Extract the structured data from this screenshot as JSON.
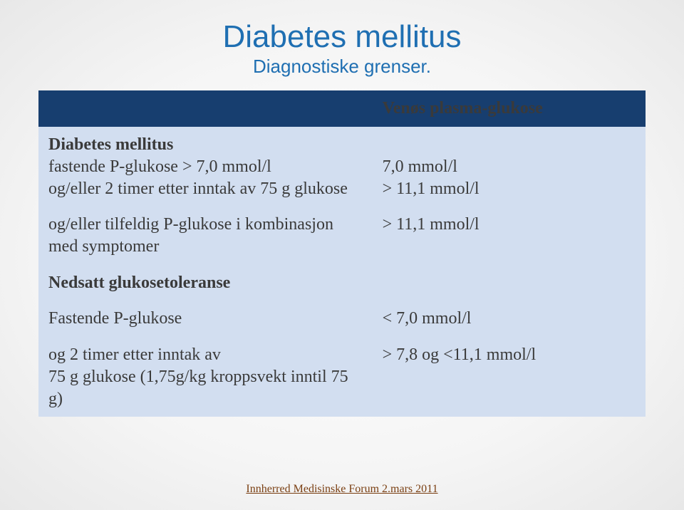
{
  "title": "Diabetes mellitus",
  "subtitle": "Diagnostiske grenser.",
  "header_right": "Venøs plasma-glukose",
  "rows": [
    {
      "left_bold": "Diabetes mellitus",
      "left_lines": "fastende P-glukose > 7,0 mmol/l\nog/eller 2 timer etter inntak av 75 g glukose",
      "right": "7,0 mmol/l\n> 11,1 mmol/l",
      "band": "light"
    },
    {
      "left_lines": "og/eller tilfeldig P-glukose i kombinasjon med symptomer",
      "right": "> 11,1 mmol/l",
      "band": "light"
    },
    {
      "left_bold": "Nedsatt glukosetoleranse",
      "right": "",
      "band": "light"
    },
    {
      "left_lines": "Fastende P-glukose",
      "right": "< 7,0 mmol/l",
      "band": "light"
    },
    {
      "left_lines": "og 2 timer etter inntak av\n75 g glukose (1,75g/kg kroppsvekt inntil 75 g)",
      "right": "> 7,8 og <11,1 mmol/l",
      "band": "light"
    }
  ],
  "footer": "Innherred Medisinske Forum 2.mars 2011",
  "colors": {
    "title": "#1f6fb2",
    "band_dark": "#173e6f",
    "band_light": "#d2def0",
    "text": "#3a3a3a",
    "footer": "#7a3f12"
  },
  "fonts": {
    "title_family": "Comic Sans MS",
    "body_family": "Georgia",
    "title_size_pt": 33,
    "subtitle_size_pt": 20,
    "cell_size_pt": 18,
    "footer_size_pt": 12
  }
}
